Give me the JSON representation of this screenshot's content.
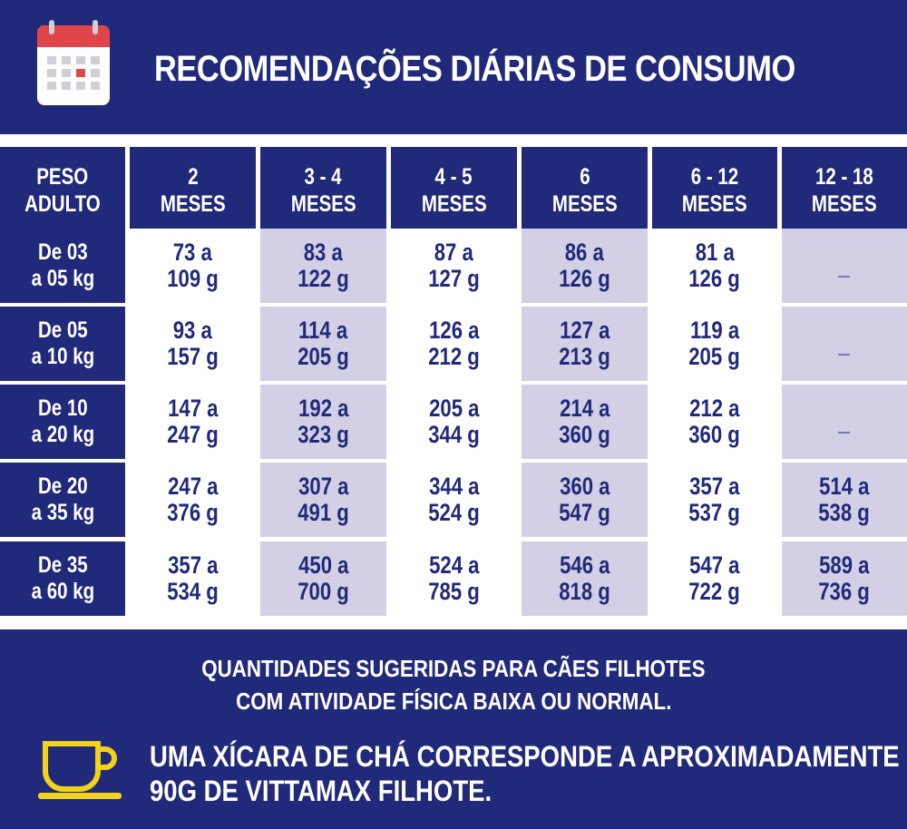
{
  "header": {
    "title": "RECOMENDAÇÕES DIÁRIAS DE CONSUMO",
    "icon": "calendar-icon"
  },
  "table": {
    "corner": [
      "PESO",
      "ADULTO"
    ],
    "columns": [
      [
        "2",
        "MESES"
      ],
      [
        "3 - 4",
        "MESES"
      ],
      [
        "4 - 5",
        "MESES"
      ],
      [
        "6",
        "MESES"
      ],
      [
        "6 - 12",
        "MESES"
      ],
      [
        "12 - 18",
        "MESES"
      ]
    ],
    "rows": [
      {
        "label": [
          "De 03",
          "a 05 kg"
        ],
        "cells": [
          [
            "73 a",
            "109 g"
          ],
          [
            "83 a",
            "122 g"
          ],
          [
            "87 a",
            "127 g"
          ],
          [
            "86 a",
            "126 g"
          ],
          [
            "81 a",
            "126 g"
          ],
          [
            "_",
            ""
          ]
        ]
      },
      {
        "label": [
          "De 05",
          "a 10 kg"
        ],
        "cells": [
          [
            "93 a",
            "157 g"
          ],
          [
            "114 a",
            "205 g"
          ],
          [
            "126 a",
            "212 g"
          ],
          [
            "127 a",
            "213 g"
          ],
          [
            "119 a",
            "205 g"
          ],
          [
            "_",
            ""
          ]
        ]
      },
      {
        "label": [
          "De 10",
          "a 20 kg"
        ],
        "cells": [
          [
            "147 a",
            "247 g"
          ],
          [
            "192 a",
            "323 g"
          ],
          [
            "205 a",
            "344 g"
          ],
          [
            "214 a",
            "360 g"
          ],
          [
            "212 a",
            "360 g"
          ],
          [
            "_",
            ""
          ]
        ]
      },
      {
        "label": [
          "De 20",
          "a 35 kg"
        ],
        "cells": [
          [
            "247 a",
            "376 g"
          ],
          [
            "307 a",
            "491 g"
          ],
          [
            "344 a",
            "524 g"
          ],
          [
            "360 a",
            "547 g"
          ],
          [
            "357 a",
            "537 g"
          ],
          [
            "514 a",
            "538 g"
          ]
        ]
      },
      {
        "label": [
          "De 35",
          "a 60 kg"
        ],
        "cells": [
          [
            "357 a",
            "534 g"
          ],
          [
            "450  a",
            "700 g"
          ],
          [
            "524 a",
            "785 g"
          ],
          [
            "546 a",
            "818 g"
          ],
          [
            "547 a",
            "722 g"
          ],
          [
            "589 a",
            "736 g"
          ]
        ]
      }
    ]
  },
  "footer": {
    "note_line1": "QUANTIDADES SUGERIDAS PARA CÃES FILHOTES",
    "note_line2": "COM ATIVIDADE FÍSICA BAIXA OU NORMAL.",
    "cup_line1": "UMA XÍCARA DE CHÁ CORRESPONDE A APROXIMADAMENTE",
    "cup_line2": "90G DE VITTAMAX FILHOTE.",
    "icon": "tea-cup-icon"
  },
  "colors": {
    "navy": "#212a7a",
    "lavender": "#d3d0e6",
    "calendar_red": "#e0454a",
    "cup_yellow": "#f2d21a"
  }
}
